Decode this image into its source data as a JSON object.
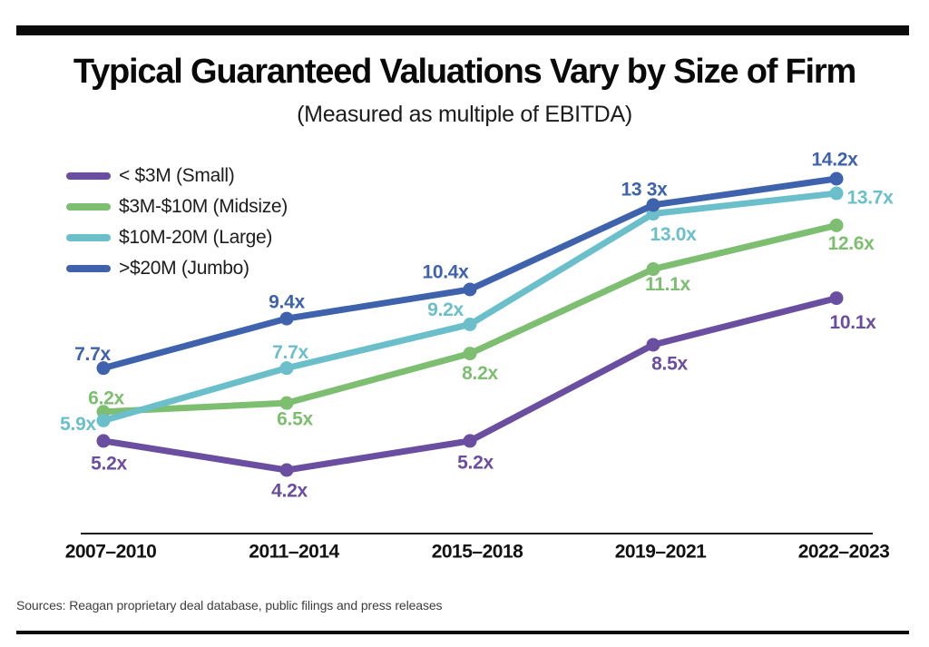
{
  "source": "Sources: Reagan proprietary deal database, public filings and press releases",
  "chart_data": {
    "type": "line",
    "title": "Typical Guaranteed Valuations Vary by Size of Firm",
    "subtitle": "(Measured as multiple of EBITDA)",
    "unit_suffix": "x",
    "categories": [
      "2007–2010",
      "2011–2014",
      "2015–2018",
      "2019–2021",
      "2022–2023"
    ],
    "ylim": [
      4,
      15
    ],
    "grid": false,
    "legend_position": "top-left",
    "series": [
      {
        "key": "small",
        "name": "< $3M (Small)",
        "color": "#6A4EA0",
        "values": [
          5.2,
          4.2,
          5.2,
          8.5,
          10.1
        ],
        "point_labels": [
          "5.2x",
          "4.2x",
          "5.2x",
          "8.5x",
          "10.1x"
        ],
        "label_offsets": [
          [
            6,
            25
          ],
          [
            3,
            23
          ],
          [
            6,
            24
          ],
          [
            18,
            21
          ],
          [
            18,
            27
          ]
        ]
      },
      {
        "key": "midsize",
        "name": "$3M-$10M (Midsize)",
        "color": "#7DBE70",
        "values": [
          6.2,
          6.5,
          8.2,
          11.1,
          12.6
        ],
        "point_labels": [
          "6.2x",
          "6.5x",
          "8.2x",
          "11.1x",
          "12.6x"
        ],
        "label_offsets": [
          [
            3,
            -15
          ],
          [
            9,
            18
          ],
          [
            11,
            22
          ],
          [
            16,
            17
          ],
          [
            16,
            20
          ]
        ]
      },
      {
        "key": "large",
        "name": "$10M-20M (Large)",
        "color": "#6BBFCA",
        "values": [
          5.9,
          7.7,
          9.2,
          13.0,
          13.7
        ],
        "point_labels": [
          "5.9x",
          "7.7x",
          "9.2x",
          "13.0x",
          "13.7x"
        ],
        "label_offsets": [
          [
            -28,
            4
          ],
          [
            4,
            -17
          ],
          [
            -27,
            -16
          ],
          [
            22,
            23
          ],
          [
            37,
            5
          ]
        ]
      },
      {
        "key": "jumbo",
        "name": ">$20M (Jumbo)",
        "color": "#3E62AC",
        "values": [
          7.7,
          9.4,
          10.4,
          13.3,
          14.2
        ],
        "point_labels": [
          "7.7x",
          "9.4x",
          "10.4x",
          "13 3x",
          "14.2x"
        ],
        "label_offsets": [
          [
            -12,
            -15
          ],
          [
            0,
            -18
          ],
          [
            -27,
            -19
          ],
          [
            -10,
            -17
          ],
          [
            -2,
            -21
          ]
        ]
      }
    ],
    "draw_order": [
      "midsize",
      "large",
      "jumbo",
      "small"
    ]
  }
}
